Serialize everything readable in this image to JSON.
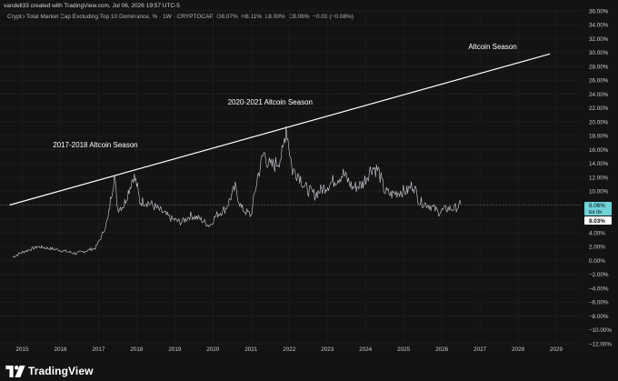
{
  "header": {
    "attribution": "vandell33 created with TradingView.com, Jul 06, 2026 19:57 UTC-5",
    "symbol": "Crypto Total Market Cap Excluding Top 10 Dominance, % · 1W · CRYPTOCAP",
    "ohlc": {
      "o_label": "O",
      "o_value": "8.07%",
      "h_label": "H",
      "h_value": "8.11%",
      "l_label": "L",
      "l_value": "8.00%",
      "c_label": "C",
      "c_value": "8.06%",
      "change": "−0.01 (−0.08%)"
    }
  },
  "footer": {
    "brand": "TradingView"
  },
  "colors": {
    "background": "#131313",
    "price_series": "#d1d4dc",
    "trendline": "#ffffff",
    "last_price_badge": "#6fd3d8",
    "grid": "#1c1c1c",
    "axis_text": "#c9ccd4"
  },
  "chart_data": {
    "type": "line",
    "series": [
      {
        "x": [
          "2014-10",
          "2015-01",
          "2015-06",
          "2016-01",
          "2016-06",
          "2016-12",
          "2017-02",
          "2017-04",
          "2017-05",
          "2017-06",
          "2017-07",
          "2017-09",
          "2017-12",
          "2018-01",
          "2018-02",
          "2018-04",
          "2018-06",
          "2018-09",
          "2018-12",
          "2019-03",
          "2019-06",
          "2019-09",
          "2019-12",
          "2020-02",
          "2020-05",
          "2020-08",
          "2020-10",
          "2021-01",
          "2021-03",
          "2021-05",
          "2021-07",
          "2021-09",
          "2021-11",
          "2021-12",
          "2022-02",
          "2022-04",
          "2022-06",
          "2022-09",
          "2022-12",
          "2023-03",
          "2023-06",
          "2023-09",
          "2023-12",
          "2024-03",
          "2024-05",
          "2024-07",
          "2024-09",
          "2024-12",
          "2025-02",
          "2025-04",
          "2025-06",
          "2025-09",
          "2025-12",
          "2026-03",
          "2026-05",
          "2026-07"
        ],
        "values": [
          0.5,
          1.2,
          2.0,
          1.5,
          1.0,
          1.8,
          3.5,
          6.0,
          9.5,
          12.2,
          7.5,
          8.0,
          12.3,
          11.0,
          8.5,
          8.5,
          8.0,
          7.0,
          6.0,
          5.5,
          6.5,
          6.0,
          5.0,
          6.5,
          7.5,
          10.5,
          7.5,
          6.5,
          12.0,
          15.5,
          13.5,
          14.0,
          15.5,
          19.5,
          13.0,
          12.5,
          10.5,
          9.5,
          10.5,
          11.5,
          12.5,
          10.5,
          11.0,
          13.5,
          13.0,
          10.0,
          9.5,
          10.0,
          10.0,
          11.0,
          8.5,
          8.0,
          7.0,
          7.5,
          7.5,
          8.06
        ]
      }
    ],
    "last_value_label": "8.06%",
    "countdown": "6d 0h",
    "reference_value_label": "8.03%",
    "reference_value": 8.03,
    "trendline": {
      "x": [
        "2014-09",
        "2028-11"
      ],
      "values": [
        8.0,
        29.8
      ]
    },
    "annotations": [
      {
        "text": "Altcoin Season",
        "x": "2027-05",
        "y": 30.5
      },
      {
        "text": "2020-2021 Altcoin Season",
        "x": "2021-07",
        "y": 22.5
      },
      {
        "text": "2017-2018 Altcoin Season",
        "x": "2016-12",
        "y": 16.3
      }
    ],
    "x_tick_labels": [
      "2015",
      "2016",
      "2017",
      "2018",
      "2019",
      "2020",
      "2021",
      "2022",
      "2023",
      "2024",
      "2025",
      "2026",
      "2027",
      "2028",
      "2029"
    ],
    "y_tick_labels": [
      "−12.00%",
      "−10.00%",
      "−8.00%",
      "−6.00%",
      "−4.00%",
      "−2.00%",
      "0.00%",
      "2.00%",
      "4.00%",
      "6.00%",
      "8.00%",
      "10.00%",
      "12.00%",
      "14.00%",
      "16.00%",
      "18.00%",
      "20.00%",
      "22.00%",
      "24.00%",
      "26.00%",
      "28.00%",
      "30.00%",
      "32.00%",
      "34.00%",
      "36.00%"
    ],
    "y_ticks": [
      -12,
      -10,
      -8,
      -6,
      -4,
      -2,
      0,
      2,
      4,
      6,
      8,
      10,
      12,
      14,
      16,
      18,
      20,
      22,
      24,
      26,
      28,
      30,
      32,
      34,
      36
    ],
    "ylim": [
      -12,
      36
    ],
    "xlim": [
      "2014-06",
      "2029-09"
    ],
    "grid": true
  }
}
